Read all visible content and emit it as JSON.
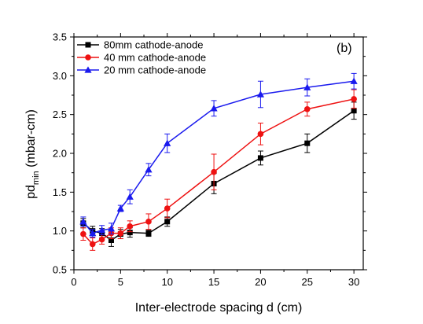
{
  "chart_data": {
    "type": "line",
    "panel_label": "(b)",
    "xlabel": "Inter-electrode spacing d (cm)",
    "ylabel": "pd",
    "ylabel_sub": "min",
    "ylabel_unit": " (mbar-cm)",
    "xlim": [
      0,
      31
    ],
    "ylim": [
      0.5,
      3.5
    ],
    "xticks": [
      0,
      5,
      10,
      15,
      20,
      25,
      30
    ],
    "yticks": [
      0.5,
      1.0,
      1.5,
      2.0,
      2.5,
      3.0,
      3.5
    ],
    "ytick_labels": [
      "0.5",
      "1.0",
      "1.5",
      "2.0",
      "2.5",
      "3.0",
      "3.5"
    ],
    "legend_position": "top-left",
    "grid": false,
    "series": [
      {
        "name": "80mm cathode-anode",
        "color": "#000000",
        "marker": "square",
        "points": [
          {
            "x": 1,
            "y": 1.1,
            "err": 0.06
          },
          {
            "x": 2,
            "y": 1.0,
            "err": 0.06
          },
          {
            "x": 3,
            "y": 0.97,
            "err": 0.06
          },
          {
            "x": 4,
            "y": 0.88,
            "err": 0.08
          },
          {
            "x": 5,
            "y": 0.96,
            "err": 0.06
          },
          {
            "x": 6,
            "y": 0.98,
            "err": 0.06
          },
          {
            "x": 8,
            "y": 0.97,
            "err": 0.04
          },
          {
            "x": 10,
            "y": 1.12,
            "err": 0.06
          },
          {
            "x": 15,
            "y": 1.61,
            "err": 0.13
          },
          {
            "x": 20,
            "y": 1.94,
            "err": 0.09
          },
          {
            "x": 25,
            "y": 2.13,
            "err": 0.12
          },
          {
            "x": 30,
            "y": 2.55,
            "err": 0.11
          }
        ]
      },
      {
        "name": "40 mm cathode-anode",
        "color": "#ee1111",
        "marker": "circle",
        "points": [
          {
            "x": 1,
            "y": 0.96,
            "err": 0.08
          },
          {
            "x": 2,
            "y": 0.83,
            "err": 0.08
          },
          {
            "x": 3,
            "y": 0.89,
            "err": 0.06
          },
          {
            "x": 4,
            "y": 0.97,
            "err": 0.07
          },
          {
            "x": 5,
            "y": 0.97,
            "err": 0.07
          },
          {
            "x": 6,
            "y": 1.06,
            "err": 0.07
          },
          {
            "x": 8,
            "y": 1.12,
            "err": 0.1
          },
          {
            "x": 10,
            "y": 1.29,
            "err": 0.12
          },
          {
            "x": 15,
            "y": 1.76,
            "err": 0.23
          },
          {
            "x": 20,
            "y": 2.25,
            "err": 0.14
          },
          {
            "x": 25,
            "y": 2.57,
            "err": 0.09
          },
          {
            "x": 30,
            "y": 2.7,
            "err": 0.12
          }
        ]
      },
      {
        "name": "20 mm cathode-anode",
        "color": "#1a1aee",
        "marker": "triangle",
        "points": [
          {
            "x": 1,
            "y": 1.12,
            "err": 0.06
          },
          {
            "x": 2,
            "y": 0.97,
            "err": 0.05
          },
          {
            "x": 3,
            "y": 1.01,
            "err": 0.06
          },
          {
            "x": 4,
            "y": 1.03,
            "err": 0.07
          },
          {
            "x": 5,
            "y": 1.29,
            "err": 0.04
          },
          {
            "x": 6,
            "y": 1.44,
            "err": 0.09
          },
          {
            "x": 8,
            "y": 1.79,
            "err": 0.08
          },
          {
            "x": 10,
            "y": 2.13,
            "err": 0.12
          },
          {
            "x": 15,
            "y": 2.58,
            "err": 0.1
          },
          {
            "x": 20,
            "y": 2.76,
            "err": 0.17
          },
          {
            "x": 25,
            "y": 2.85,
            "err": 0.11
          },
          {
            "x": 30,
            "y": 2.93,
            "err": 0.1
          }
        ]
      }
    ]
  }
}
